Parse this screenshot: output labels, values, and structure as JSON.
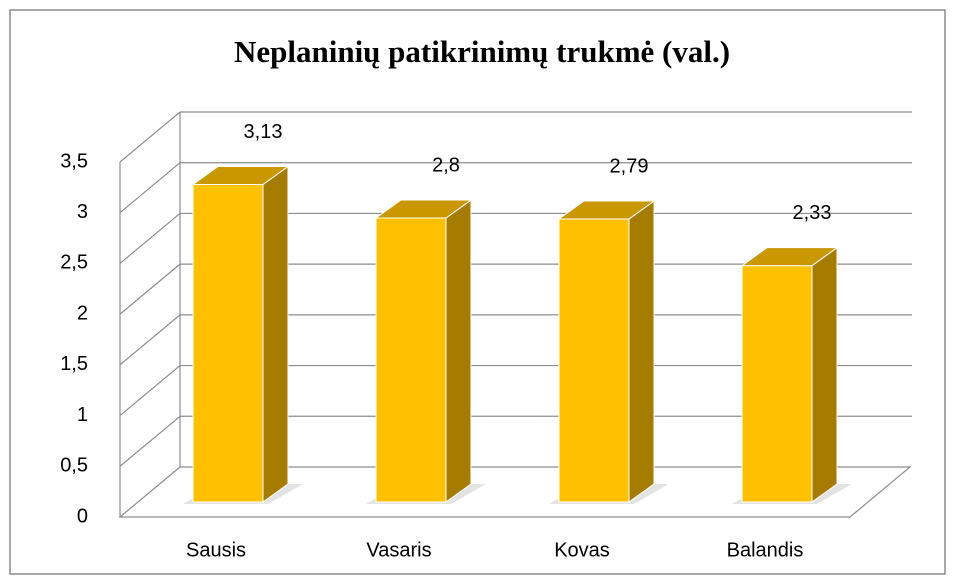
{
  "chart_data": {
    "type": "bar3d",
    "title": "Neplaninių patikrinimų trukmė (val.)",
    "categories": [
      "Sausis",
      "Vasaris",
      "Kovas",
      "Balandis"
    ],
    "values": [
      3.13,
      2.8,
      2.79,
      2.33
    ],
    "value_labels": [
      "3,13",
      "2,8",
      "2,79",
      "2,33"
    ],
    "color": "#ffc000",
    "ylim": [
      0,
      3.5
    ],
    "yticks": [
      0,
      {
        "value": 0.5,
        "label": "0,5"
      },
      1,
      {
        "value": 1.5,
        "label": "1,5"
      },
      2,
      {
        "value": 2.5,
        "label": "2,5"
      },
      3,
      {
        "value": 3.5,
        "label": "3,5"
      }
    ],
    "grid": true
  }
}
